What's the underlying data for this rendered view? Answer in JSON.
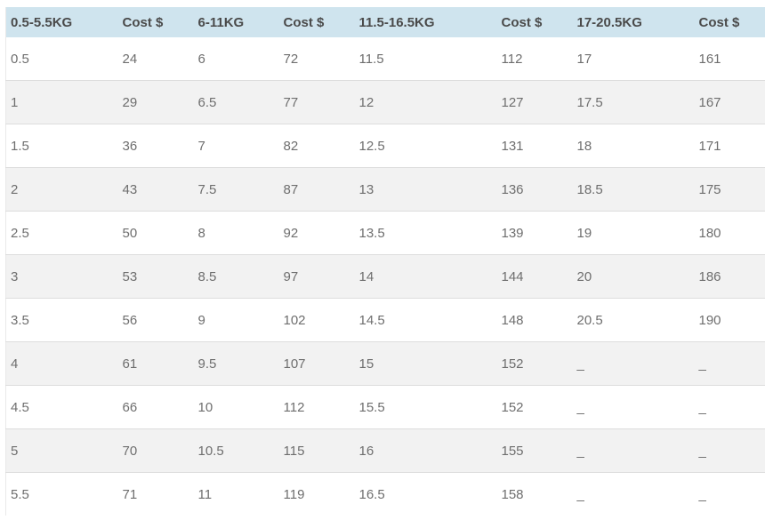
{
  "chart_data": {
    "type": "table",
    "title": "",
    "columns": [
      "0.5-5.5KG",
      "Cost $",
      "6-11KG",
      "Cost $",
      "11.5-16.5KG",
      "Cost $",
      "17-20.5KG",
      "Cost $"
    ],
    "rows": [
      [
        "0.5",
        "24",
        "6",
        "72",
        "11.5",
        "112",
        "17",
        "161"
      ],
      [
        "1",
        "29",
        "6.5",
        "77",
        "12",
        "127",
        "17.5",
        "167"
      ],
      [
        "1.5",
        "36",
        "7",
        "82",
        "12.5",
        "131",
        "18",
        "171"
      ],
      [
        "2",
        "43",
        "7.5",
        "87",
        "13",
        "136",
        "18.5",
        "175"
      ],
      [
        "2.5",
        "50",
        "8",
        "92",
        "13.5",
        "139",
        "19",
        "180"
      ],
      [
        "3",
        "53",
        "8.5",
        "97",
        "14",
        "144",
        "20",
        "186"
      ],
      [
        "3.5",
        "56",
        "9",
        "102",
        "14.5",
        "148",
        "20.5",
        "190"
      ],
      [
        "4",
        "61",
        "9.5",
        "107",
        "15",
        "152",
        "_",
        "_"
      ],
      [
        "4.5",
        "66",
        "10",
        "112",
        "15.5",
        "152",
        "_",
        "_"
      ],
      [
        "5",
        "70",
        "10.5",
        "115",
        "16",
        "155",
        "_",
        "_"
      ],
      [
        "5.5",
        "71",
        "11",
        "119",
        "16.5",
        "158",
        "_",
        "_"
      ]
    ],
    "layout": {
      "header_position": "top",
      "alternating_rows": true,
      "grid": "horizontal-only"
    },
    "colors": {
      "header_background": "#cfe4ee",
      "header_text": "#4a4a4a",
      "body_text": "#6e6e6e",
      "alt_row_background": "#f2f2f2",
      "row_border": "#dddddd",
      "page_background": "#ffffff"
    }
  }
}
